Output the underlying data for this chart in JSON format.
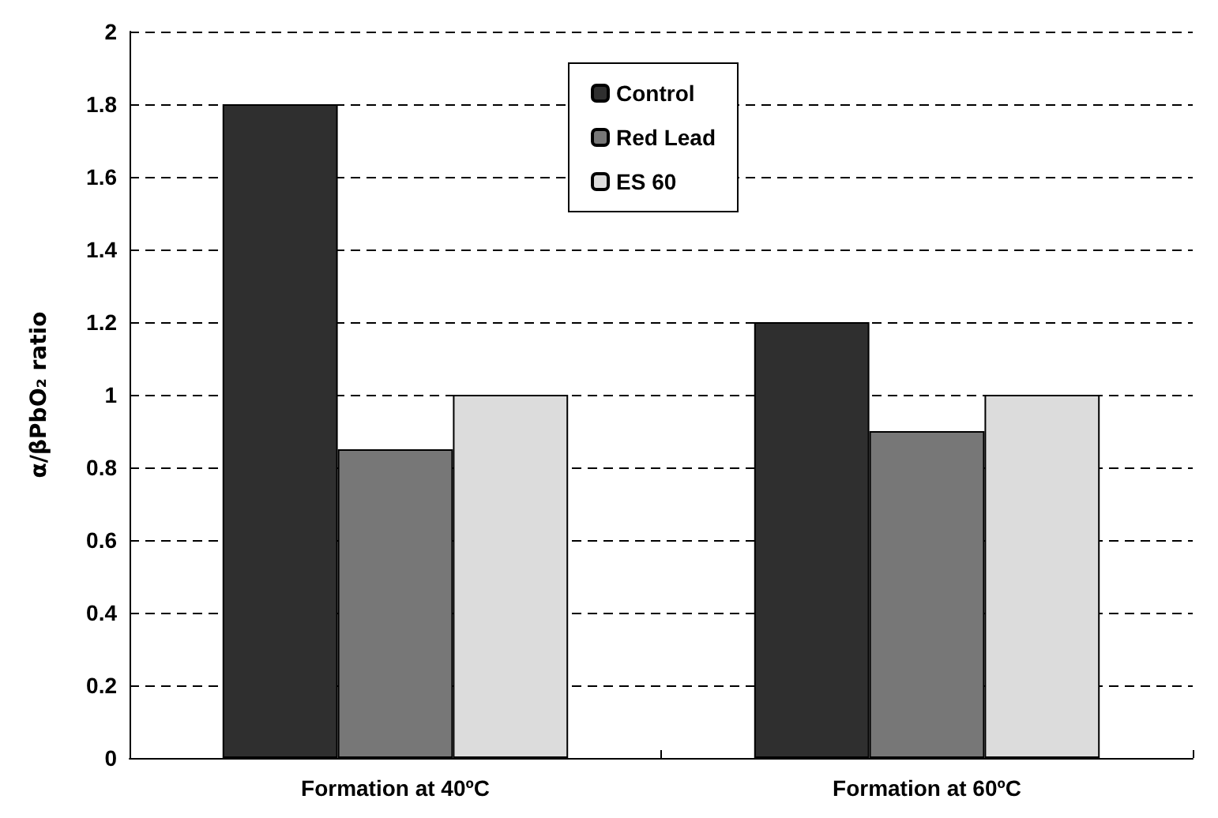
{
  "chart_data": {
    "type": "bar",
    "ylabel": "α/βPbO₂ ratio",
    "categories": [
      "Formation at 40ºC",
      "Formation at 60ºC"
    ],
    "series": [
      {
        "name": "Control",
        "color": "#2f2f2f",
        "values": [
          1.8,
          1.2
        ]
      },
      {
        "name": "Red Lead",
        "color": "#777777",
        "values": [
          0.85,
          0.9
        ]
      },
      {
        "name": "ES 60",
        "color": "#dcdcdc",
        "values": [
          1.0,
          1.0
        ]
      }
    ],
    "ylim": [
      0,
      2
    ],
    "yticks": [
      0,
      0.2,
      0.4,
      0.6,
      0.8,
      1,
      1.2,
      1.4,
      1.6,
      1.8,
      2
    ],
    "grid": "y",
    "legend": "top"
  }
}
